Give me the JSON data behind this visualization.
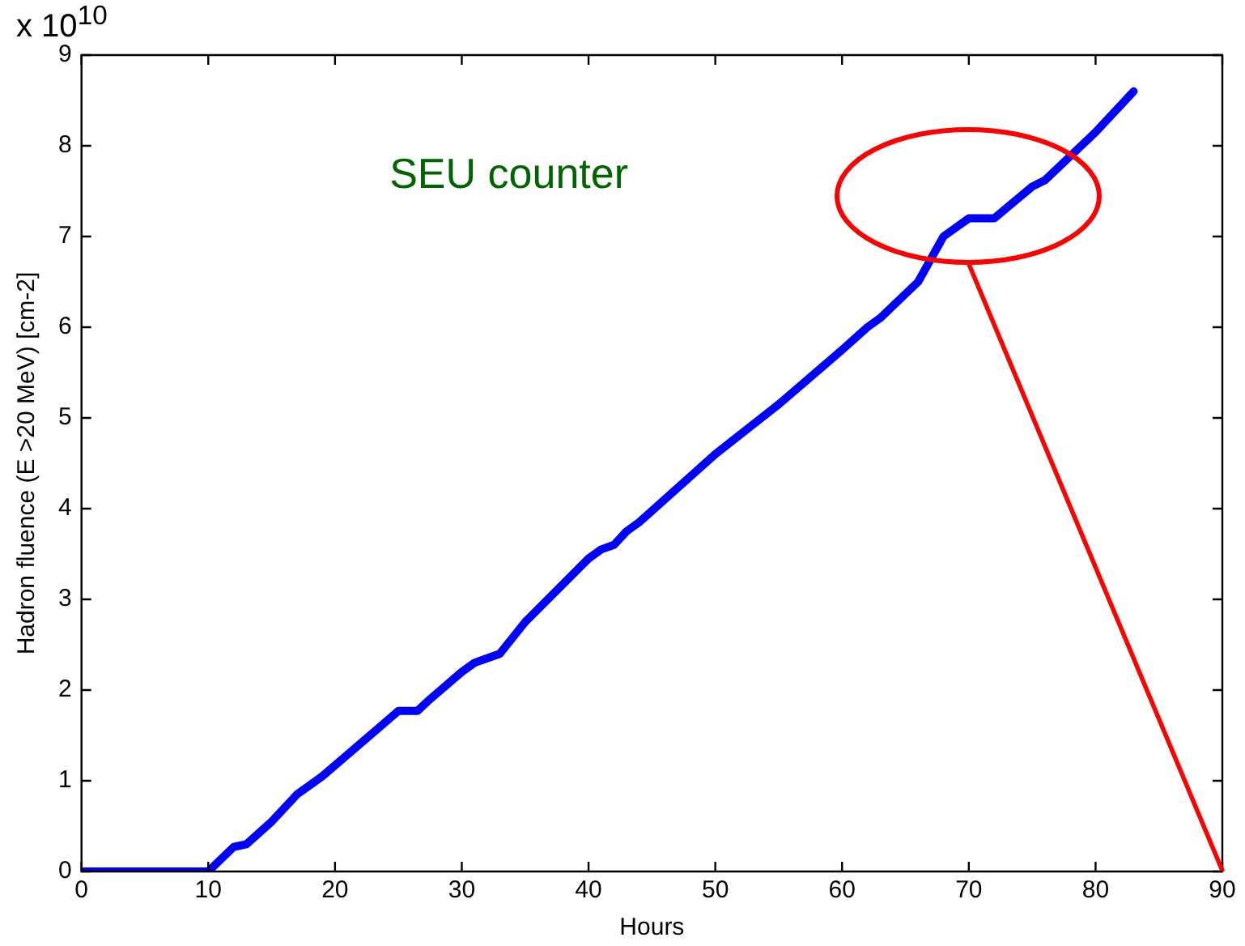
{
  "chart_data": {
    "type": "line",
    "xlabel": "Hours",
    "ylabel": "Hadron fluence (E >20 MeV) [cm-2]",
    "annotations": [
      "x 10$^{10}$",
      "SEU counter"
    ],
    "series": [
      {
        "color": "#0000ff",
        "x": [
          0,
          10,
          12,
          13,
          15,
          17,
          18,
          19,
          24,
          25,
          26.5,
          27.5,
          30,
          31,
          32,
          33,
          35,
          40,
          41,
          42,
          43,
          44,
          46,
          50,
          55,
          60,
          62,
          63,
          66,
          67,
          68,
          69,
          70,
          72,
          75,
          76,
          80,
          83
        ],
        "values": [
          0,
          0,
          0.27,
          0.3,
          0.55,
          0.85,
          0.95,
          1.05,
          1.65,
          1.77,
          1.77,
          1.9,
          2.2,
          2.3,
          2.35,
          2.4,
          2.75,
          3.45,
          3.55,
          3.6,
          3.75,
          3.85,
          4.1,
          4.6,
          5.15,
          5.75,
          6.0,
          6.1,
          6.5,
          6.75,
          7.0,
          7.1,
          7.2,
          7.2,
          7.55,
          7.62,
          8.15,
          8.6
        ]
      }
    ],
    "xlim": [
      0,
      90
    ],
    "xticks": [
      0,
      10,
      20,
      30,
      40,
      50,
      60,
      70,
      80,
      90
    ],
    "ylim": [
      0,
      9
    ],
    "yticks": [
      0,
      1,
      2,
      3,
      4,
      5,
      6,
      7,
      8,
      9
    ],
    "grid": false,
    "legend": false,
    "marker": "none",
    "line_style": "solid"
  }
}
